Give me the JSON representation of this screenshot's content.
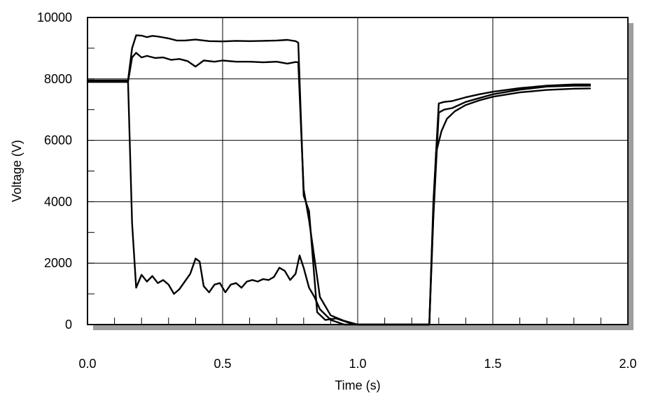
{
  "chart_data": {
    "type": "line",
    "title": "",
    "xlabel": "Time (s)",
    "ylabel": "Voltage (V)",
    "xlim": [
      0,
      2
    ],
    "ylim": [
      0,
      10000
    ],
    "xticks": [
      0,
      0.5,
      1,
      1.5,
      2
    ],
    "xtick_labels": [
      "0.0",
      "0.5",
      "1.0",
      "1.5",
      "2.0"
    ],
    "yticks": [
      0,
      2000,
      4000,
      6000,
      8000,
      10000
    ],
    "ytick_labels": [
      "0",
      "2000",
      "4000",
      "6000",
      "8000",
      "10000"
    ],
    "grid": true,
    "legend": "none",
    "colors": {
      "line": "#000000",
      "grid": "#000000",
      "shadow": "#9e9e9e",
      "background": "#ffffff"
    },
    "series": [
      {
        "x": [
          0,
          0.15,
          0.165,
          0.18,
          0.2,
          0.22,
          0.24,
          0.26,
          0.28,
          0.3,
          0.33,
          0.36,
          0.4,
          0.45,
          0.5,
          0.55,
          0.6,
          0.65,
          0.7,
          0.74,
          0.77,
          0.78,
          0.8,
          0.82,
          0.85,
          0.88,
          0.92,
          0.97,
          1.0,
          1.1,
          1.2,
          1.265,
          1.28,
          1.3,
          1.32,
          1.35,
          1.4,
          1.45,
          1.5,
          1.6,
          1.7,
          1.8,
          1.86
        ],
        "y": [
          7950,
          7950,
          9000,
          9420,
          9410,
          9360,
          9400,
          9380,
          9350,
          9320,
          9250,
          9250,
          9280,
          9230,
          9220,
          9240,
          9230,
          9240,
          9250,
          9270,
          9230,
          9180,
          4200,
          3700,
          400,
          150,
          200,
          50,
          0,
          0,
          0,
          0,
          4000,
          7200,
          7250,
          7280,
          7400,
          7500,
          7580,
          7700,
          7780,
          7820,
          7820
        ]
      },
      {
        "x": [
          0,
          0.15,
          0.165,
          0.18,
          0.2,
          0.22,
          0.25,
          0.28,
          0.31,
          0.34,
          0.37,
          0.4,
          0.43,
          0.47,
          0.5,
          0.55,
          0.6,
          0.65,
          0.7,
          0.74,
          0.77,
          0.78,
          0.8,
          0.82,
          0.86,
          0.9,
          0.95,
          1.0,
          1.1,
          1.2,
          1.265,
          1.28,
          1.3,
          1.32,
          1.35,
          1.4,
          1.5,
          1.6,
          1.7,
          1.8,
          1.86
        ],
        "y": [
          7900,
          7900,
          8700,
          8850,
          8700,
          8750,
          8680,
          8700,
          8620,
          8650,
          8580,
          8400,
          8600,
          8560,
          8600,
          8560,
          8560,
          8540,
          8560,
          8500,
          8550,
          8540,
          4400,
          3400,
          900,
          300,
          120,
          0,
          0,
          0,
          0,
          3500,
          6900,
          7000,
          7050,
          7250,
          7500,
          7650,
          7750,
          7780,
          7780
        ]
      },
      {
        "x": [
          0,
          0.15,
          0.165,
          0.18,
          0.2,
          0.22,
          0.24,
          0.26,
          0.28,
          0.3,
          0.32,
          0.34,
          0.36,
          0.38,
          0.4,
          0.415,
          0.43,
          0.45,
          0.47,
          0.49,
          0.51,
          0.53,
          0.55,
          0.57,
          0.59,
          0.61,
          0.63,
          0.65,
          0.67,
          0.69,
          0.71,
          0.73,
          0.75,
          0.77,
          0.785,
          0.8,
          0.82,
          0.84,
          0.86,
          0.9,
          0.95,
          1.0,
          1.1,
          1.2,
          1.265,
          1.275,
          1.29,
          1.31,
          1.33,
          1.36,
          1.4,
          1.45,
          1.5,
          1.6,
          1.7,
          1.8,
          1.86
        ],
        "y": [
          7920,
          7920,
          3300,
          1200,
          1620,
          1400,
          1580,
          1350,
          1450,
          1300,
          1000,
          1150,
          1400,
          1650,
          2150,
          2050,
          1250,
          1050,
          1300,
          1350,
          1050,
          1300,
          1350,
          1200,
          1400,
          1450,
          1400,
          1480,
          1450,
          1550,
          1850,
          1750,
          1450,
          1650,
          2250,
          1850,
          1200,
          900,
          500,
          150,
          0,
          0,
          0,
          0,
          0,
          2500,
          5600,
          6300,
          6700,
          6950,
          7150,
          7300,
          7420,
          7560,
          7640,
          7680,
          7690
        ]
      }
    ]
  }
}
